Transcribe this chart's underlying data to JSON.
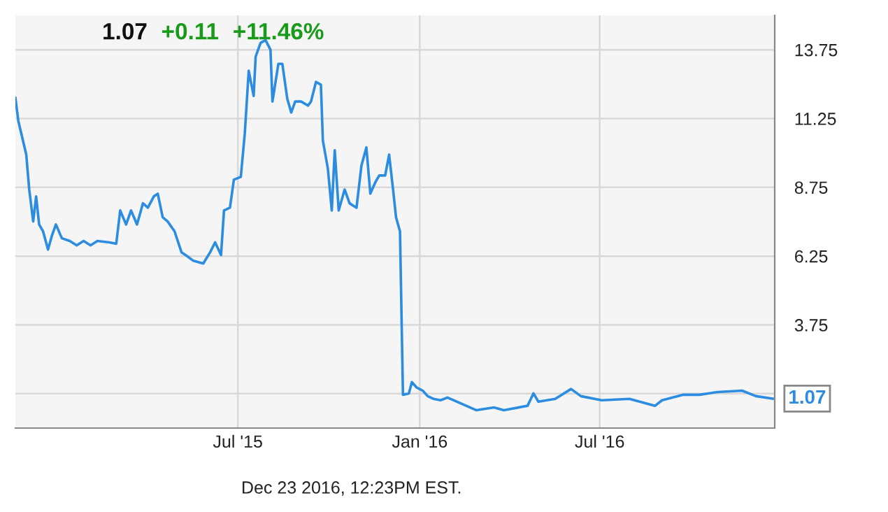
{
  "chart_data": {
    "type": "line",
    "x": [
      "2014-11-18",
      "2014-11-21",
      "2014-11-25",
      "2014-11-29",
      "2014-12-02",
      "2014-12-06",
      "2014-12-09",
      "2014-12-12",
      "2014-12-16",
      "2014-12-21",
      "2014-12-25",
      "2014-12-29",
      "2015-01-04",
      "2015-01-12",
      "2015-01-19",
      "2015-01-26",
      "2015-02-02",
      "2015-02-09",
      "2015-02-21",
      "2015-02-28",
      "2015-03-04",
      "2015-03-10",
      "2015-03-15",
      "2015-03-21",
      "2015-03-27",
      "2015-04-01",
      "2015-04-07",
      "2015-04-11",
      "2015-04-16",
      "2015-04-21",
      "2015-04-28",
      "2015-05-05",
      "2015-05-11",
      "2015-05-17",
      "2015-05-27",
      "2015-06-03",
      "2015-06-08",
      "2015-06-14",
      "2015-06-17",
      "2015-06-23",
      "2015-06-27",
      "2015-07-04",
      "2015-07-08",
      "2015-07-12",
      "2015-07-17",
      "2015-07-19",
      "2015-07-24",
      "2015-07-29",
      "2015-08-03",
      "2015-08-05",
      "2015-08-11",
      "2015-08-15",
      "2015-08-20",
      "2015-08-24",
      "2015-08-28",
      "2015-09-03",
      "2015-09-10",
      "2015-09-13",
      "2015-09-18",
      "2015-09-23",
      "2015-09-25",
      "2015-09-30",
      "2015-10-04",
      "2015-10-07",
      "2015-10-11",
      "2015-10-17",
      "2015-10-22",
      "2015-10-29",
      "2015-11-03",
      "2015-11-08",
      "2015-11-12",
      "2015-11-17",
      "2015-11-21",
      "2015-11-27",
      "2015-12-01",
      "2015-12-05",
      "2015-12-08",
      "2015-12-12",
      "2015-12-15",
      "2015-12-21",
      "2015-12-24",
      "2015-12-29",
      "2016-01-04",
      "2016-01-09",
      "2016-01-15",
      "2016-01-22",
      "2016-01-29",
      "2016-02-17",
      "2016-02-27",
      "2016-03-16",
      "2016-03-26",
      "2016-04-19",
      "2016-04-25",
      "2016-04-30",
      "2016-05-17",
      "2016-06-02",
      "2016-06-12",
      "2016-07-03",
      "2016-07-31",
      "2016-08-26",
      "2016-09-02",
      "2016-09-23",
      "2016-10-10",
      "2016-10-28",
      "2016-11-22",
      "2016-12-06",
      "2016-12-23"
    ],
    "series": [
      {
        "color": "#2b8ce0",
        "values": [
          12.0,
          11.16,
          10.55,
          9.94,
          8.67,
          7.51,
          8.42,
          7.4,
          7.15,
          6.49,
          7.0,
          7.4,
          6.9,
          6.8,
          6.64,
          6.8,
          6.64,
          6.8,
          6.75,
          6.7,
          7.91,
          7.4,
          7.91,
          7.4,
          8.17,
          8.01,
          8.42,
          8.52,
          7.66,
          7.51,
          7.15,
          6.39,
          6.24,
          6.08,
          5.98,
          6.39,
          6.75,
          6.29,
          7.91,
          8.01,
          9.03,
          9.13,
          10.7,
          12.99,
          12.07,
          13.5,
          14.0,
          14.1,
          13.75,
          11.87,
          13.24,
          13.24,
          11.97,
          11.47,
          11.87,
          11.87,
          11.72,
          11.87,
          12.58,
          12.48,
          10.45,
          9.44,
          7.91,
          10.1,
          7.91,
          8.67,
          8.17,
          8.01,
          9.54,
          10.2,
          8.52,
          8.93,
          9.18,
          9.18,
          9.94,
          8.67,
          7.66,
          7.15,
          1.21,
          1.26,
          1.67,
          1.47,
          1.36,
          1.16,
          1.06,
          1.01,
          1.11,
          0.81,
          0.65,
          0.75,
          0.65,
          0.81,
          1.26,
          0.96,
          1.06,
          1.42,
          1.16,
          1.01,
          1.06,
          0.81,
          1.01,
          1.21,
          1.21,
          1.31,
          1.36,
          1.16,
          1.07
        ]
      }
    ],
    "xlim": [
      "2014-11-18",
      "2016-12-25"
    ],
    "xticks": [
      {
        "value": "2015-07-01",
        "label": "Jul '15"
      },
      {
        "value": "2016-01-01",
        "label": "Jan '16"
      },
      {
        "value": "2016-07-01",
        "label": "Jul '16"
      }
    ],
    "ylim": [
      0,
      15
    ],
    "yticks": [
      {
        "value": 1.25,
        "label": null
      },
      3.75,
      6.25,
      8.75,
      11.25,
      13.75
    ],
    "grid": true,
    "annotations": [
      "1.07",
      "+0.11",
      "+11.46%",
      "Dec 23 2016, 12:23PM EST.",
      {
        "text": "1.07",
        "x": "2016-12-23",
        "y": 1.07
      }
    ]
  }
}
